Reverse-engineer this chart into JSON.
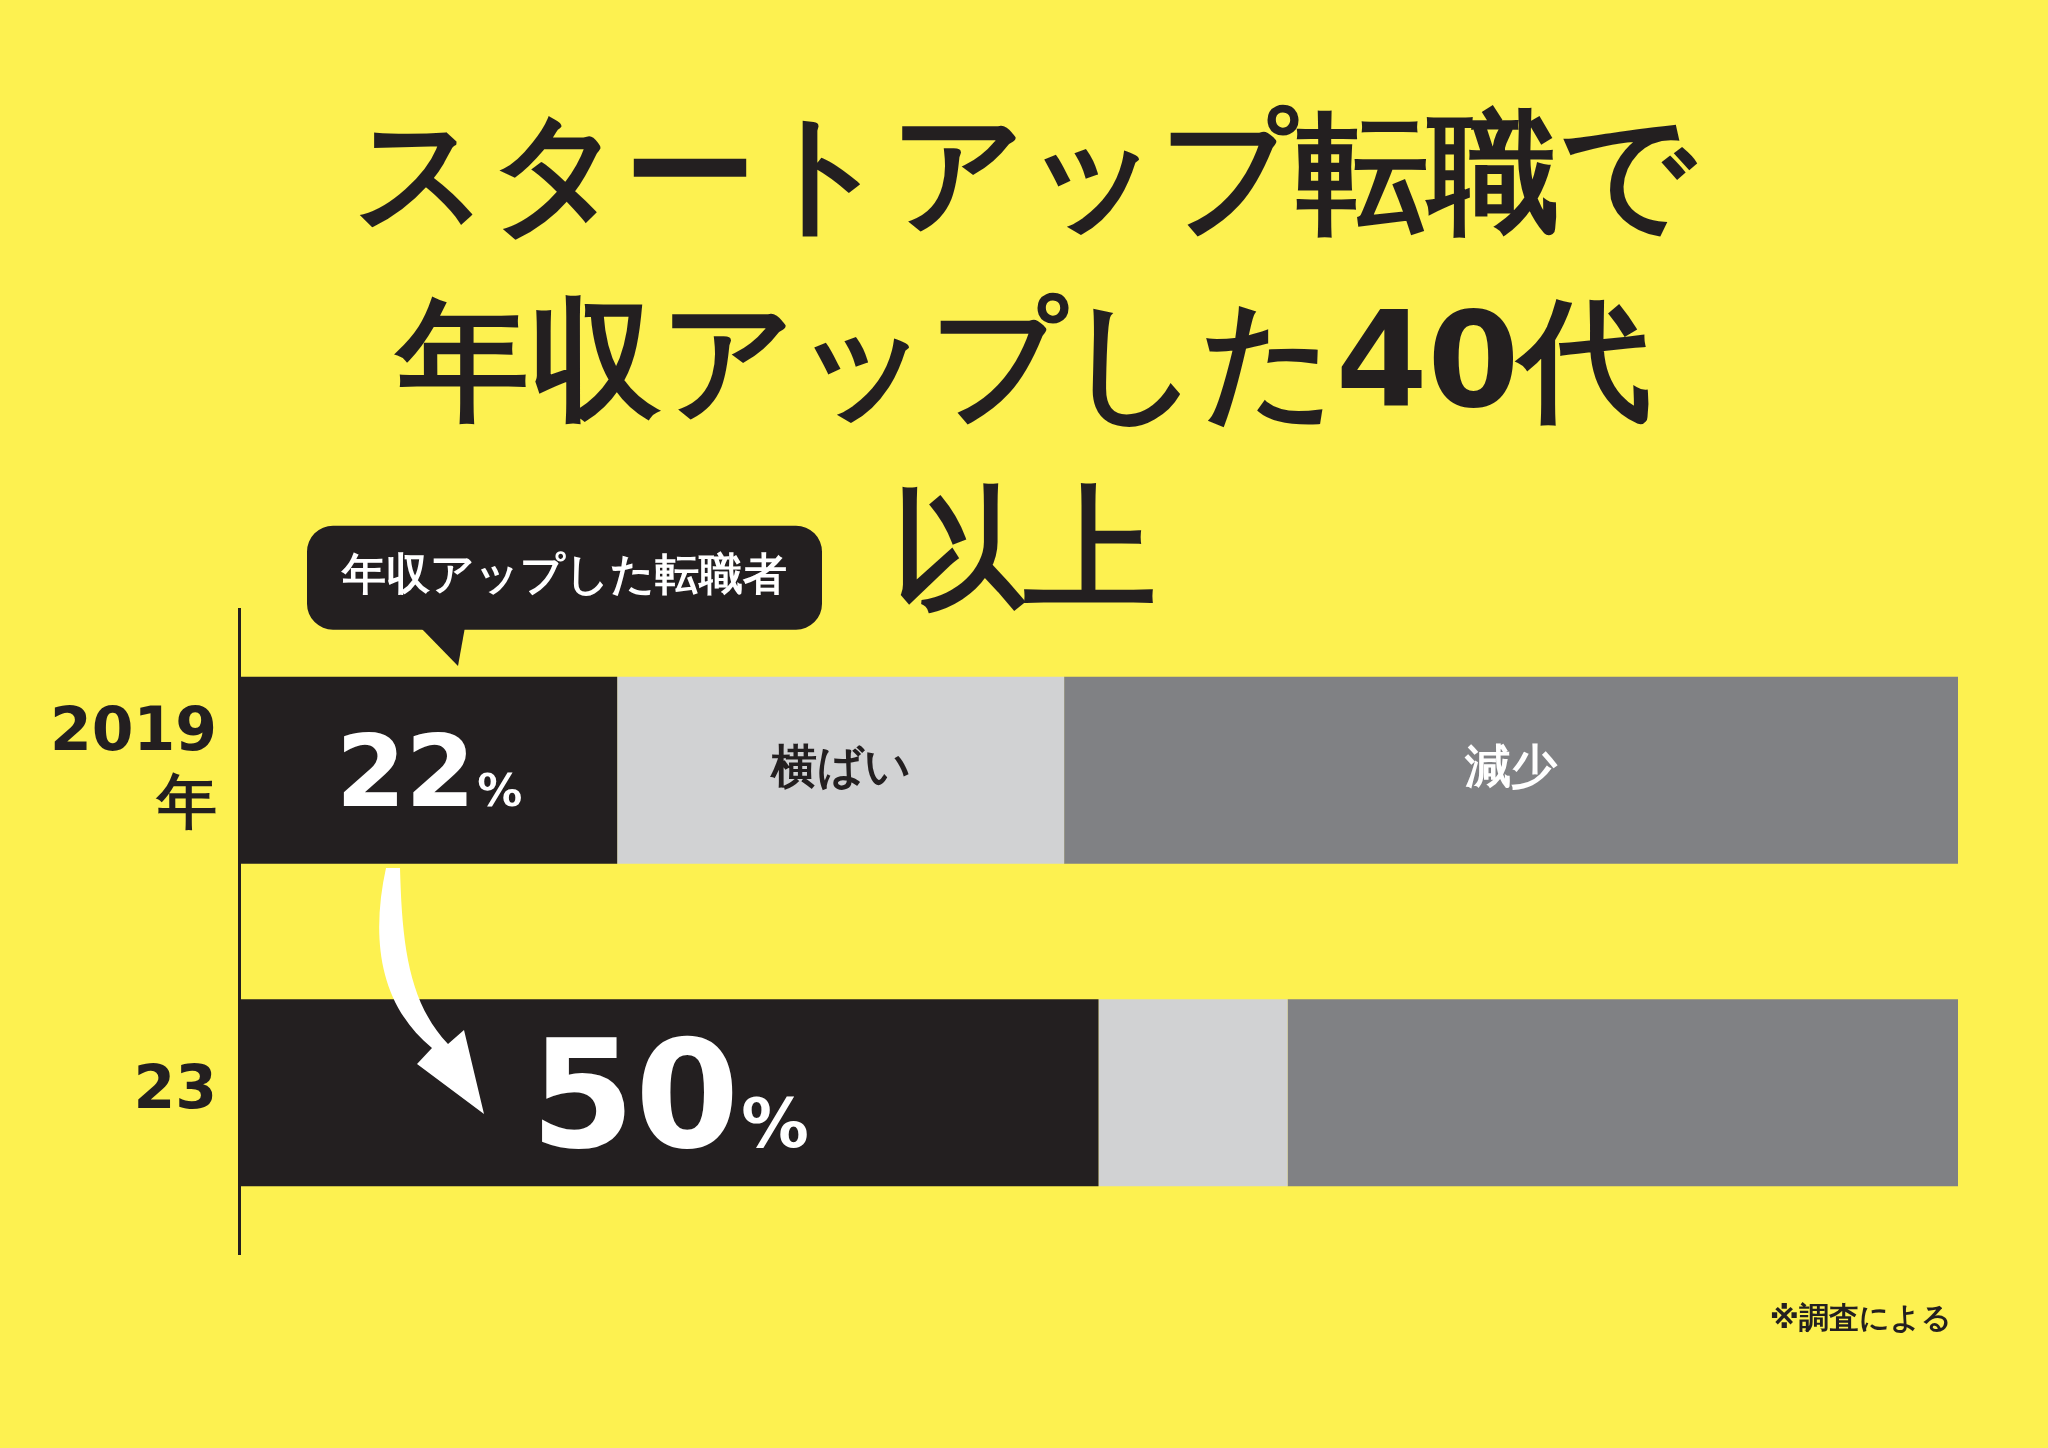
{
  "chart_data": {
    "type": "bar",
    "orientation": "horizontal",
    "stacked": true,
    "title": "スタートアップ転職で年収アップした40代以上",
    "categories": [
      "2019\n年",
      "23"
    ],
    "xlim": [
      0,
      100
    ],
    "tick_labels": "y",
    "series": [
      {
        "name": "年収アップした転職者",
        "color": "#231f20",
        "values": [
          22,
          50
        ],
        "value_labels": [
          "22%",
          "50%"
        ]
      },
      {
        "name": "横ばい",
        "color": "#d1d2d3",
        "values": [
          26,
          11
        ]
      },
      {
        "name": "減少",
        "color": "#808184",
        "values": [
          52,
          39
        ]
      }
    ],
    "annotations": [
      "※調査による"
    ]
  }
}
